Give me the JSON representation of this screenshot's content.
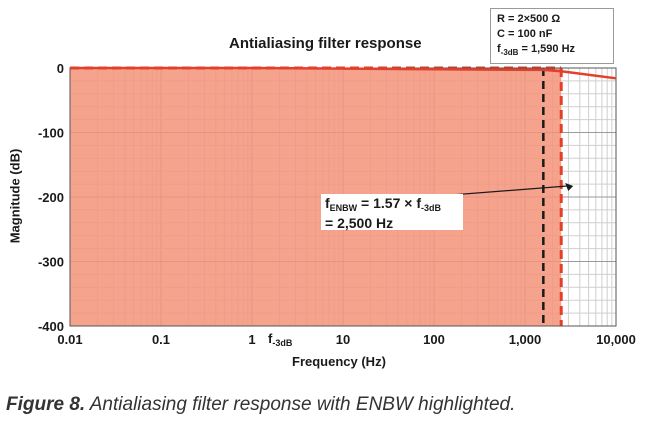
{
  "params": {
    "r_line": "R = 2×500 Ω",
    "c_line": "C = 100 nF",
    "f_prefix": "f",
    "f_sub": "-3dB",
    "f_value": " = 1,590 Hz"
  },
  "annotation": {
    "prefix": "f",
    "sub1": "ENBW",
    "mid": " = 1.57 × f",
    "sub2": "-3dB",
    "line2": "= 2,500 Hz"
  },
  "f3db_tick": {
    "prefix": "f",
    "sub": "-3dB"
  },
  "caption": {
    "bold": "Figure 8.",
    "rest": " Antialiasing filter response with ENBW highlighted."
  },
  "chart_data": {
    "type": "line",
    "title": "Antialiasing filter response",
    "xlabel": "Frequency (Hz)",
    "ylabel": "Magnitude (dB)",
    "x_scale": "log",
    "xlim": [
      0.01,
      10000
    ],
    "ylim": [
      -400,
      0
    ],
    "x_ticks": [
      0.01,
      0.1,
      1,
      10,
      100,
      1000,
      10000
    ],
    "x_tick_labels": [
      "0.01",
      "0.1",
      "1",
      "10",
      "100",
      "1,000",
      "10,000"
    ],
    "y_ticks": [
      0,
      -100,
      -200,
      -300,
      -400
    ],
    "y_tick_labels": [
      "0",
      "-100",
      "-200",
      "-300",
      "-400"
    ],
    "grid": true,
    "series": [
      {
        "x": [
          0.01,
          0.1,
          1,
          1590,
          2500,
          10000
        ],
        "y": [
          0,
          0,
          0,
          -3,
          -5,
          -16
        ]
      }
    ],
    "f3db_hz": 1590,
    "fenbw_hz": 2500,
    "highlight_range": [
      0.01,
      2500
    ],
    "colors": {
      "line": "#e2402a",
      "fill": "#f4937a",
      "marker": "#1a1a1a"
    }
  }
}
